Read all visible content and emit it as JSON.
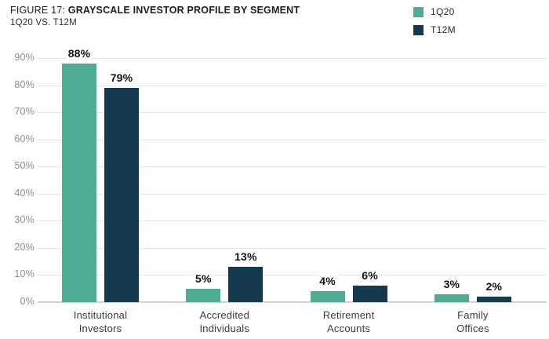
{
  "figure": {
    "title_prefix": "FIGURE 17:",
    "title_main": "GRAYSCALE INVESTOR PROFILE BY SEGMENT",
    "subtitle": "1Q20 VS. T12M"
  },
  "legend": {
    "items": [
      {
        "label": "1Q20",
        "color": "#4FAD95"
      },
      {
        "label": "T12M",
        "color": "#14394C"
      }
    ]
  },
  "chart_data": {
    "type": "bar",
    "title": "FIGURE 17: GRAYSCALE INVESTOR PROFILE BY SEGMENT",
    "subtitle": "1Q20 VS. T12M",
    "categories": [
      "Institutional\nInvestors",
      "Accredited\nIndividuals",
      "Retirement\nAccounts",
      "Family\nOffices"
    ],
    "series": [
      {
        "name": "1Q20",
        "color": "#4FAD95",
        "values": [
          88,
          5,
          4,
          3
        ]
      },
      {
        "name": "T12M",
        "color": "#14394C",
        "values": [
          79,
          13,
          6,
          2
        ]
      }
    ],
    "value_labels": [
      [
        "88%",
        "5%",
        "4%",
        "3%"
      ],
      [
        "79%",
        "13%",
        "6%",
        "2%"
      ]
    ],
    "value_suffix": "%",
    "y_ticks": [
      0,
      10,
      20,
      30,
      40,
      50,
      60,
      70,
      80,
      90
    ],
    "y_tick_labels": [
      "0%",
      "10%",
      "20%",
      "30%",
      "40%",
      "50%",
      "60%",
      "70%",
      "80%",
      "90%"
    ],
    "ylim": [
      0,
      90
    ],
    "xlabel": "",
    "ylabel": "",
    "grid": true,
    "legend_position": "top-right",
    "gridline_color": "#e4e4e4",
    "baseline_color": "#d2d2d2"
  }
}
